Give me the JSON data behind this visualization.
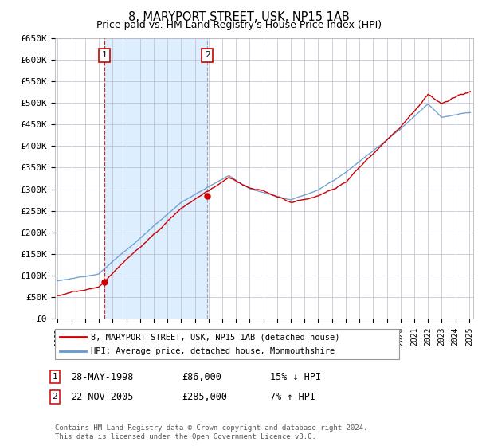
{
  "title": "8, MARYPORT STREET, USK, NP15 1AB",
  "subtitle": "Price paid vs. HM Land Registry's House Price Index (HPI)",
  "sale1_date": 1998.41,
  "sale1_price": 86000,
  "sale2_date": 2005.9,
  "sale2_price": 285000,
  "sale1_text": "28-MAY-1998",
  "sale1_amount": "£86,000",
  "sale1_hpi": "15% ↓ HPI",
  "sale2_text": "22-NOV-2005",
  "sale2_amount": "£285,000",
  "sale2_hpi": "7% ↑ HPI",
  "legend_line1": "8, MARYPORT STREET, USK, NP15 1AB (detached house)",
  "legend_line2": "HPI: Average price, detached house, Monmouthshire",
  "footer": "Contains HM Land Registry data © Crown copyright and database right 2024.\nThis data is licensed under the Open Government Licence v3.0.",
  "red_color": "#cc0000",
  "blue_color": "#6699cc",
  "shade_color": "#ddeeff",
  "ylim": [
    0,
    650000
  ],
  "xlim_left": 1994.8,
  "xlim_right": 2025.3
}
